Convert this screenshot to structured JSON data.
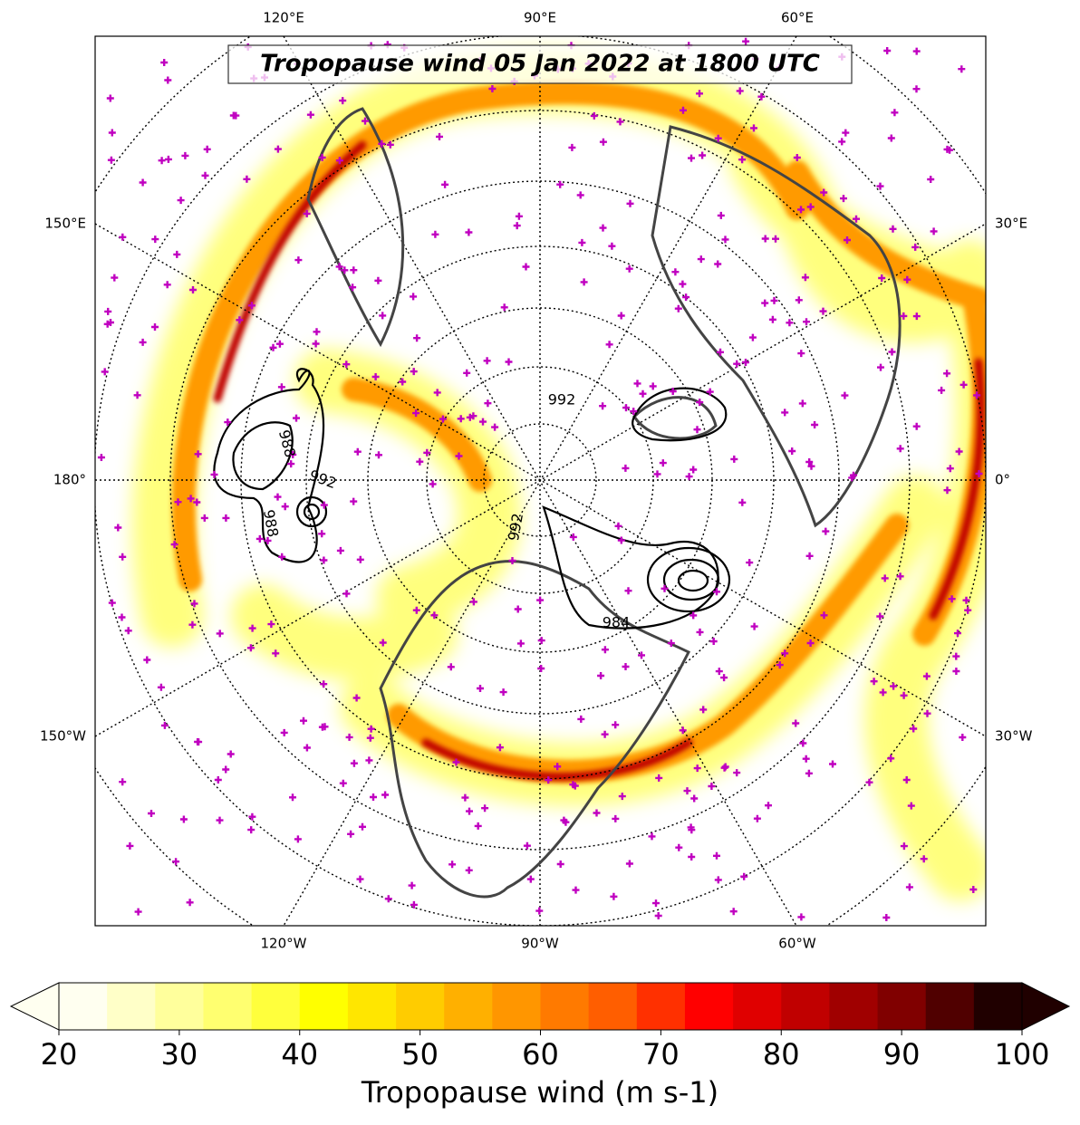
{
  "map": {
    "title": "Tropopause wind 05 Jan 2022 at 1800 UTC",
    "lon_labels": {
      "top": [
        "120°E",
        "90°E",
        "60°E"
      ],
      "left": [
        "150°E",
        "180°",
        "150°W"
      ],
      "right": [
        "30°E",
        "0°",
        "30°W"
      ],
      "bottom": [
        "120°W",
        "90°W",
        "60°W"
      ]
    },
    "contour_labels": [
      "992",
      "988",
      "992",
      "988",
      "984",
      "992"
    ]
  },
  "colorbar": {
    "label": "Tropopause wind (m s-1)",
    "range": [
      20,
      100
    ],
    "ticks": [
      20,
      30,
      40,
      50,
      60,
      70,
      80,
      90,
      100
    ],
    "extend": "both",
    "colors": [
      "#fffff0",
      "#ffffc8",
      "#ffff9c",
      "#ffff70",
      "#ffff3c",
      "#ffff00",
      "#ffe600",
      "#ffcc00",
      "#ffb000",
      "#ff9600",
      "#ff7a00",
      "#ff5e00",
      "#ff3000",
      "#ff0000",
      "#e00000",
      "#c00000",
      "#a00000",
      "#800000",
      "#500000",
      "#200000"
    ]
  }
}
